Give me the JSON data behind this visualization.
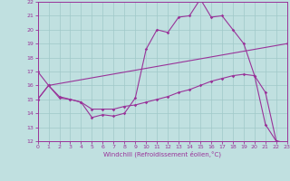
{
  "xlabel": "Windchill (Refroidissement éolien,°C)",
  "bg_color": "#c0e0e0",
  "grid_color": "#a0c8c8",
  "line_color": "#993399",
  "xlim": [
    0,
    23
  ],
  "ylim": [
    12,
    22
  ],
  "yticks": [
    12,
    13,
    14,
    15,
    16,
    17,
    18,
    19,
    20,
    21,
    22
  ],
  "xticks": [
    0,
    1,
    2,
    3,
    4,
    5,
    6,
    7,
    8,
    9,
    10,
    11,
    12,
    13,
    14,
    15,
    16,
    17,
    18,
    19,
    20,
    21,
    22,
    23
  ],
  "line1_x": [
    0,
    1,
    2,
    3,
    4,
    5,
    6,
    7,
    8,
    9,
    10,
    11,
    12,
    13,
    14,
    15,
    16,
    17,
    18,
    19,
    20,
    21,
    22,
    23
  ],
  "line1_y": [
    17.0,
    16.0,
    15.1,
    15.0,
    14.8,
    13.7,
    13.9,
    13.8,
    14.0,
    15.1,
    18.6,
    20.0,
    19.8,
    20.9,
    21.0,
    22.2,
    20.9,
    21.0,
    20.0,
    19.0,
    16.7,
    13.2,
    12.0,
    11.9
  ],
  "line2_x": [
    0,
    1,
    23
  ],
  "line2_y": [
    15.0,
    16.0,
    19.0
  ],
  "line3_x": [
    0,
    1,
    2,
    3,
    4,
    5,
    6,
    7,
    8,
    9,
    10,
    11,
    12,
    13,
    14,
    15,
    16,
    17,
    18,
    19,
    20,
    21,
    22,
    23
  ],
  "line3_y": [
    15.0,
    16.0,
    15.2,
    15.0,
    14.8,
    14.3,
    14.3,
    14.3,
    14.5,
    14.6,
    14.8,
    15.0,
    15.2,
    15.5,
    15.7,
    16.0,
    16.3,
    16.5,
    16.7,
    16.8,
    16.7,
    15.5,
    12.0,
    11.9
  ]
}
